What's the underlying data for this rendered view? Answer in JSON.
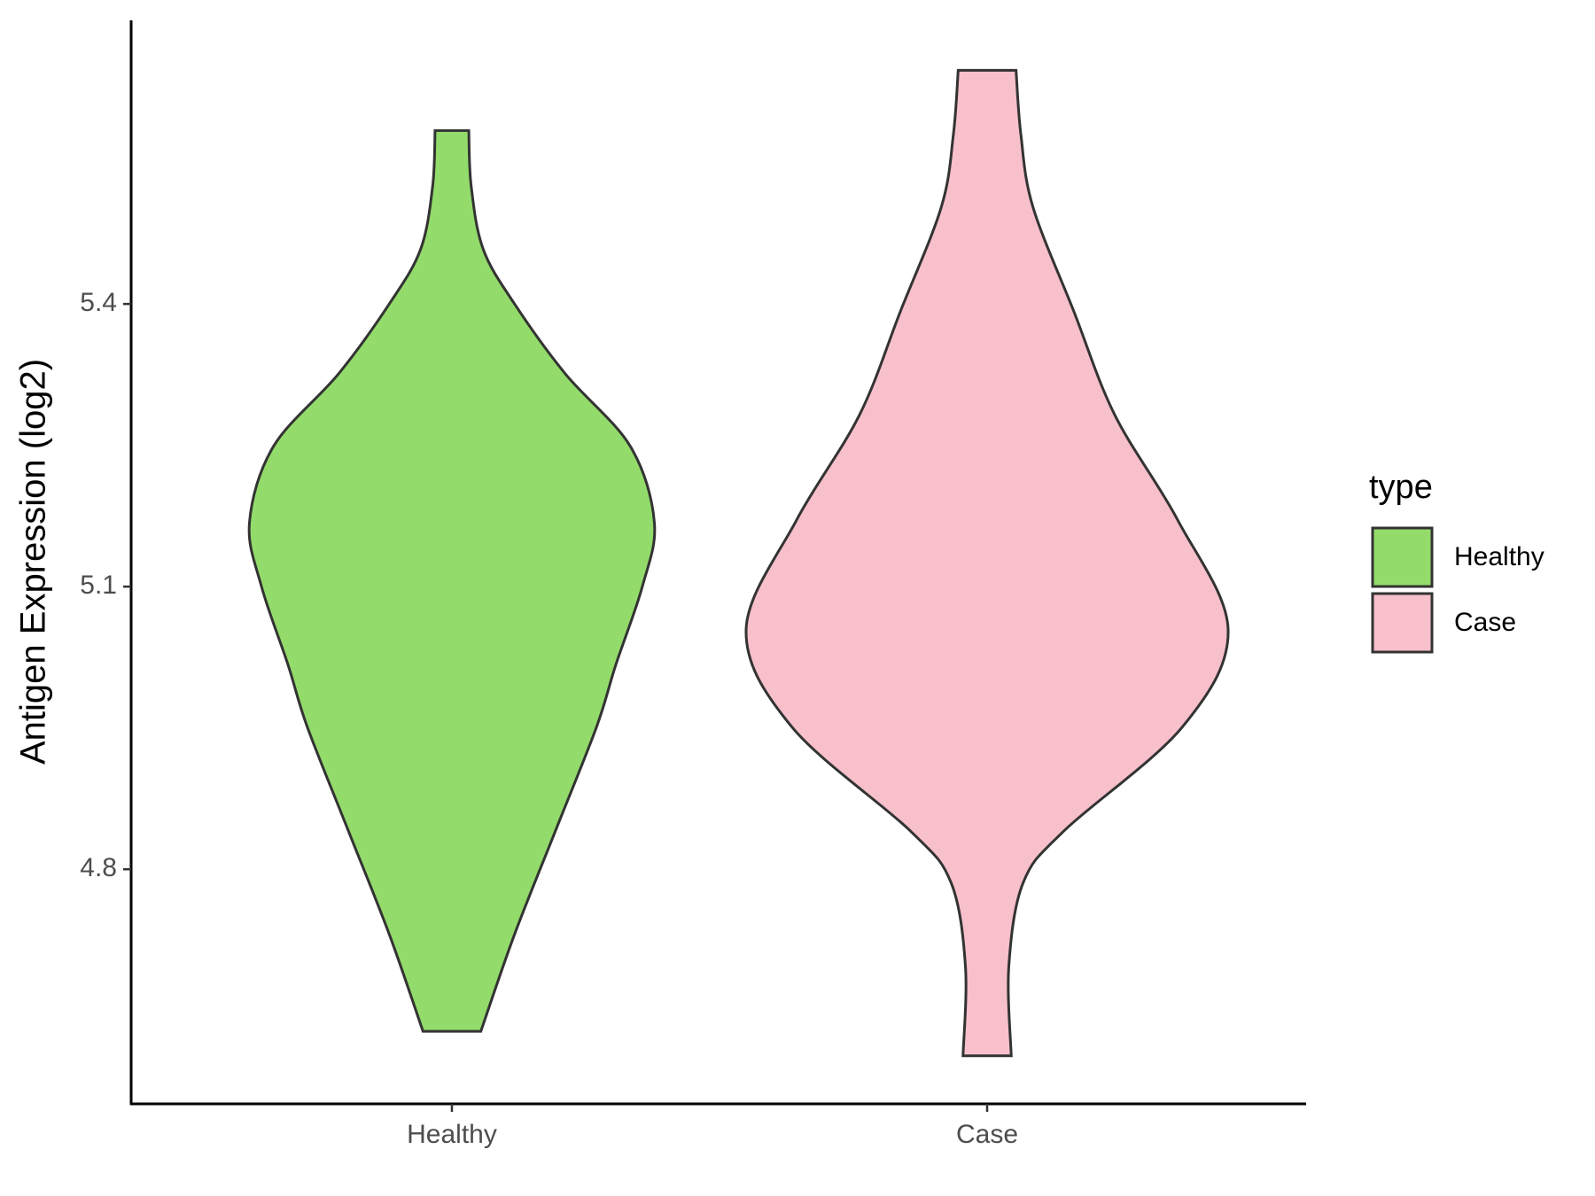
{
  "chart_data": {
    "type": "violin",
    "y_label": "Antigen Expression (log2)",
    "categories": [
      "Healthy",
      "Case"
    ],
    "ylim": [
      4.551,
      5.701
    ],
    "yticks": [
      4.8,
      5.1,
      5.4
    ],
    "legend_title": "type",
    "legend_position": "right",
    "series": [
      {
        "name": "Healthy",
        "color": "#93dc6b",
        "profile_y": [
          5.584,
          5.525,
          5.458,
          5.4,
          5.326,
          5.249,
          5.168,
          5.1,
          5.017,
          4.951,
          4.841,
          4.731,
          4.628
        ],
        "profile_width": [
          0.07,
          0.08,
          0.13,
          0.26,
          0.47,
          0.74,
          0.84,
          0.79,
          0.68,
          0.6,
          0.43,
          0.26,
          0.12
        ]
      },
      {
        "name": "Case",
        "color": "#f7c0cb",
        "profile_y": [
          5.648,
          5.58,
          5.503,
          5.392,
          5.282,
          5.171,
          5.054,
          4.951,
          4.841,
          4.786,
          4.697,
          4.602
        ],
        "profile_width": [
          0.12,
          0.14,
          0.19,
          0.36,
          0.53,
          0.79,
          1,
          0.81,
          0.32,
          0.15,
          0.09,
          0.1
        ]
      }
    ]
  }
}
